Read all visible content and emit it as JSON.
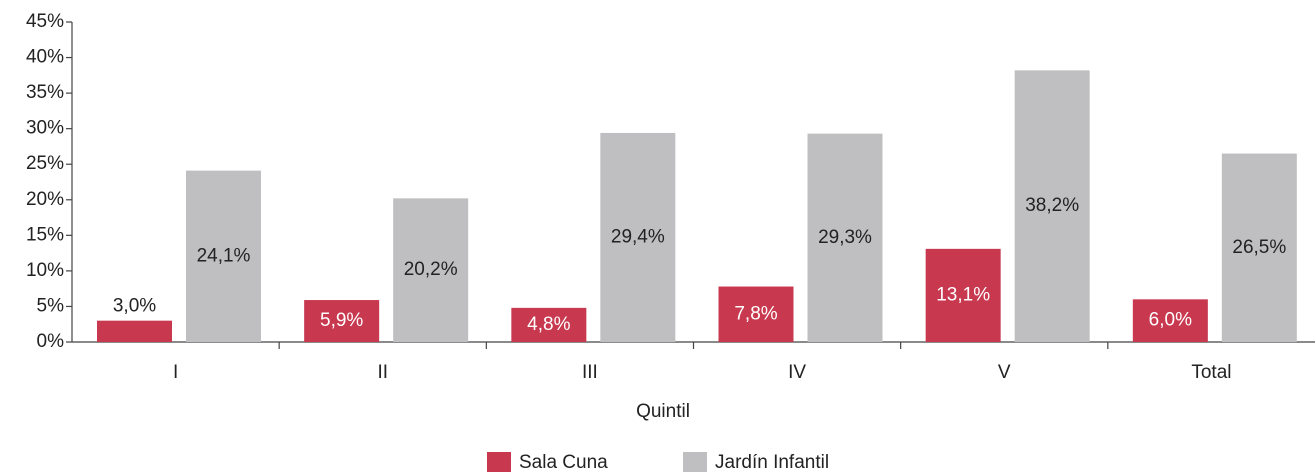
{
  "chart_data": {
    "type": "bar",
    "x_label": "Quintil",
    "categories": [
      "I",
      "II",
      "III",
      "IV",
      "V",
      "Total"
    ],
    "series": [
      {
        "name": "Sala Cuna",
        "color": "#c8384f",
        "values": [
          3.0,
          5.9,
          4.8,
          7.8,
          13.1,
          6.0
        ],
        "value_labels": [
          "3,0%",
          "5,9%",
          "4,8%",
          "7,8%",
          "13,1%",
          "6,0%"
        ]
      },
      {
        "name": "Jardín Infantil",
        "color": "#bfbfc1",
        "values": [
          24.1,
          20.2,
          29.4,
          29.3,
          38.2,
          26.5
        ],
        "value_labels": [
          "24,1%",
          "20,2%",
          "29,4%",
          "29,3%",
          "38,2%",
          "26,5%"
        ]
      }
    ],
    "ylim": [
      0,
      45
    ],
    "yticks": [
      {
        "value": 0,
        "label": "0%"
      },
      {
        "value": 5,
        "label": "5%"
      },
      {
        "value": 10,
        "label": "10%"
      },
      {
        "value": 15,
        "label": "15%"
      },
      {
        "value": 20,
        "label": "20%"
      },
      {
        "value": 25,
        "label": "25%"
      },
      {
        "value": 30,
        "label": "30%"
      },
      {
        "value": 35,
        "label": "35%"
      },
      {
        "value": 40,
        "label": "40%"
      },
      {
        "value": 45,
        "label": "45%"
      }
    ],
    "legend": "bottom"
  }
}
